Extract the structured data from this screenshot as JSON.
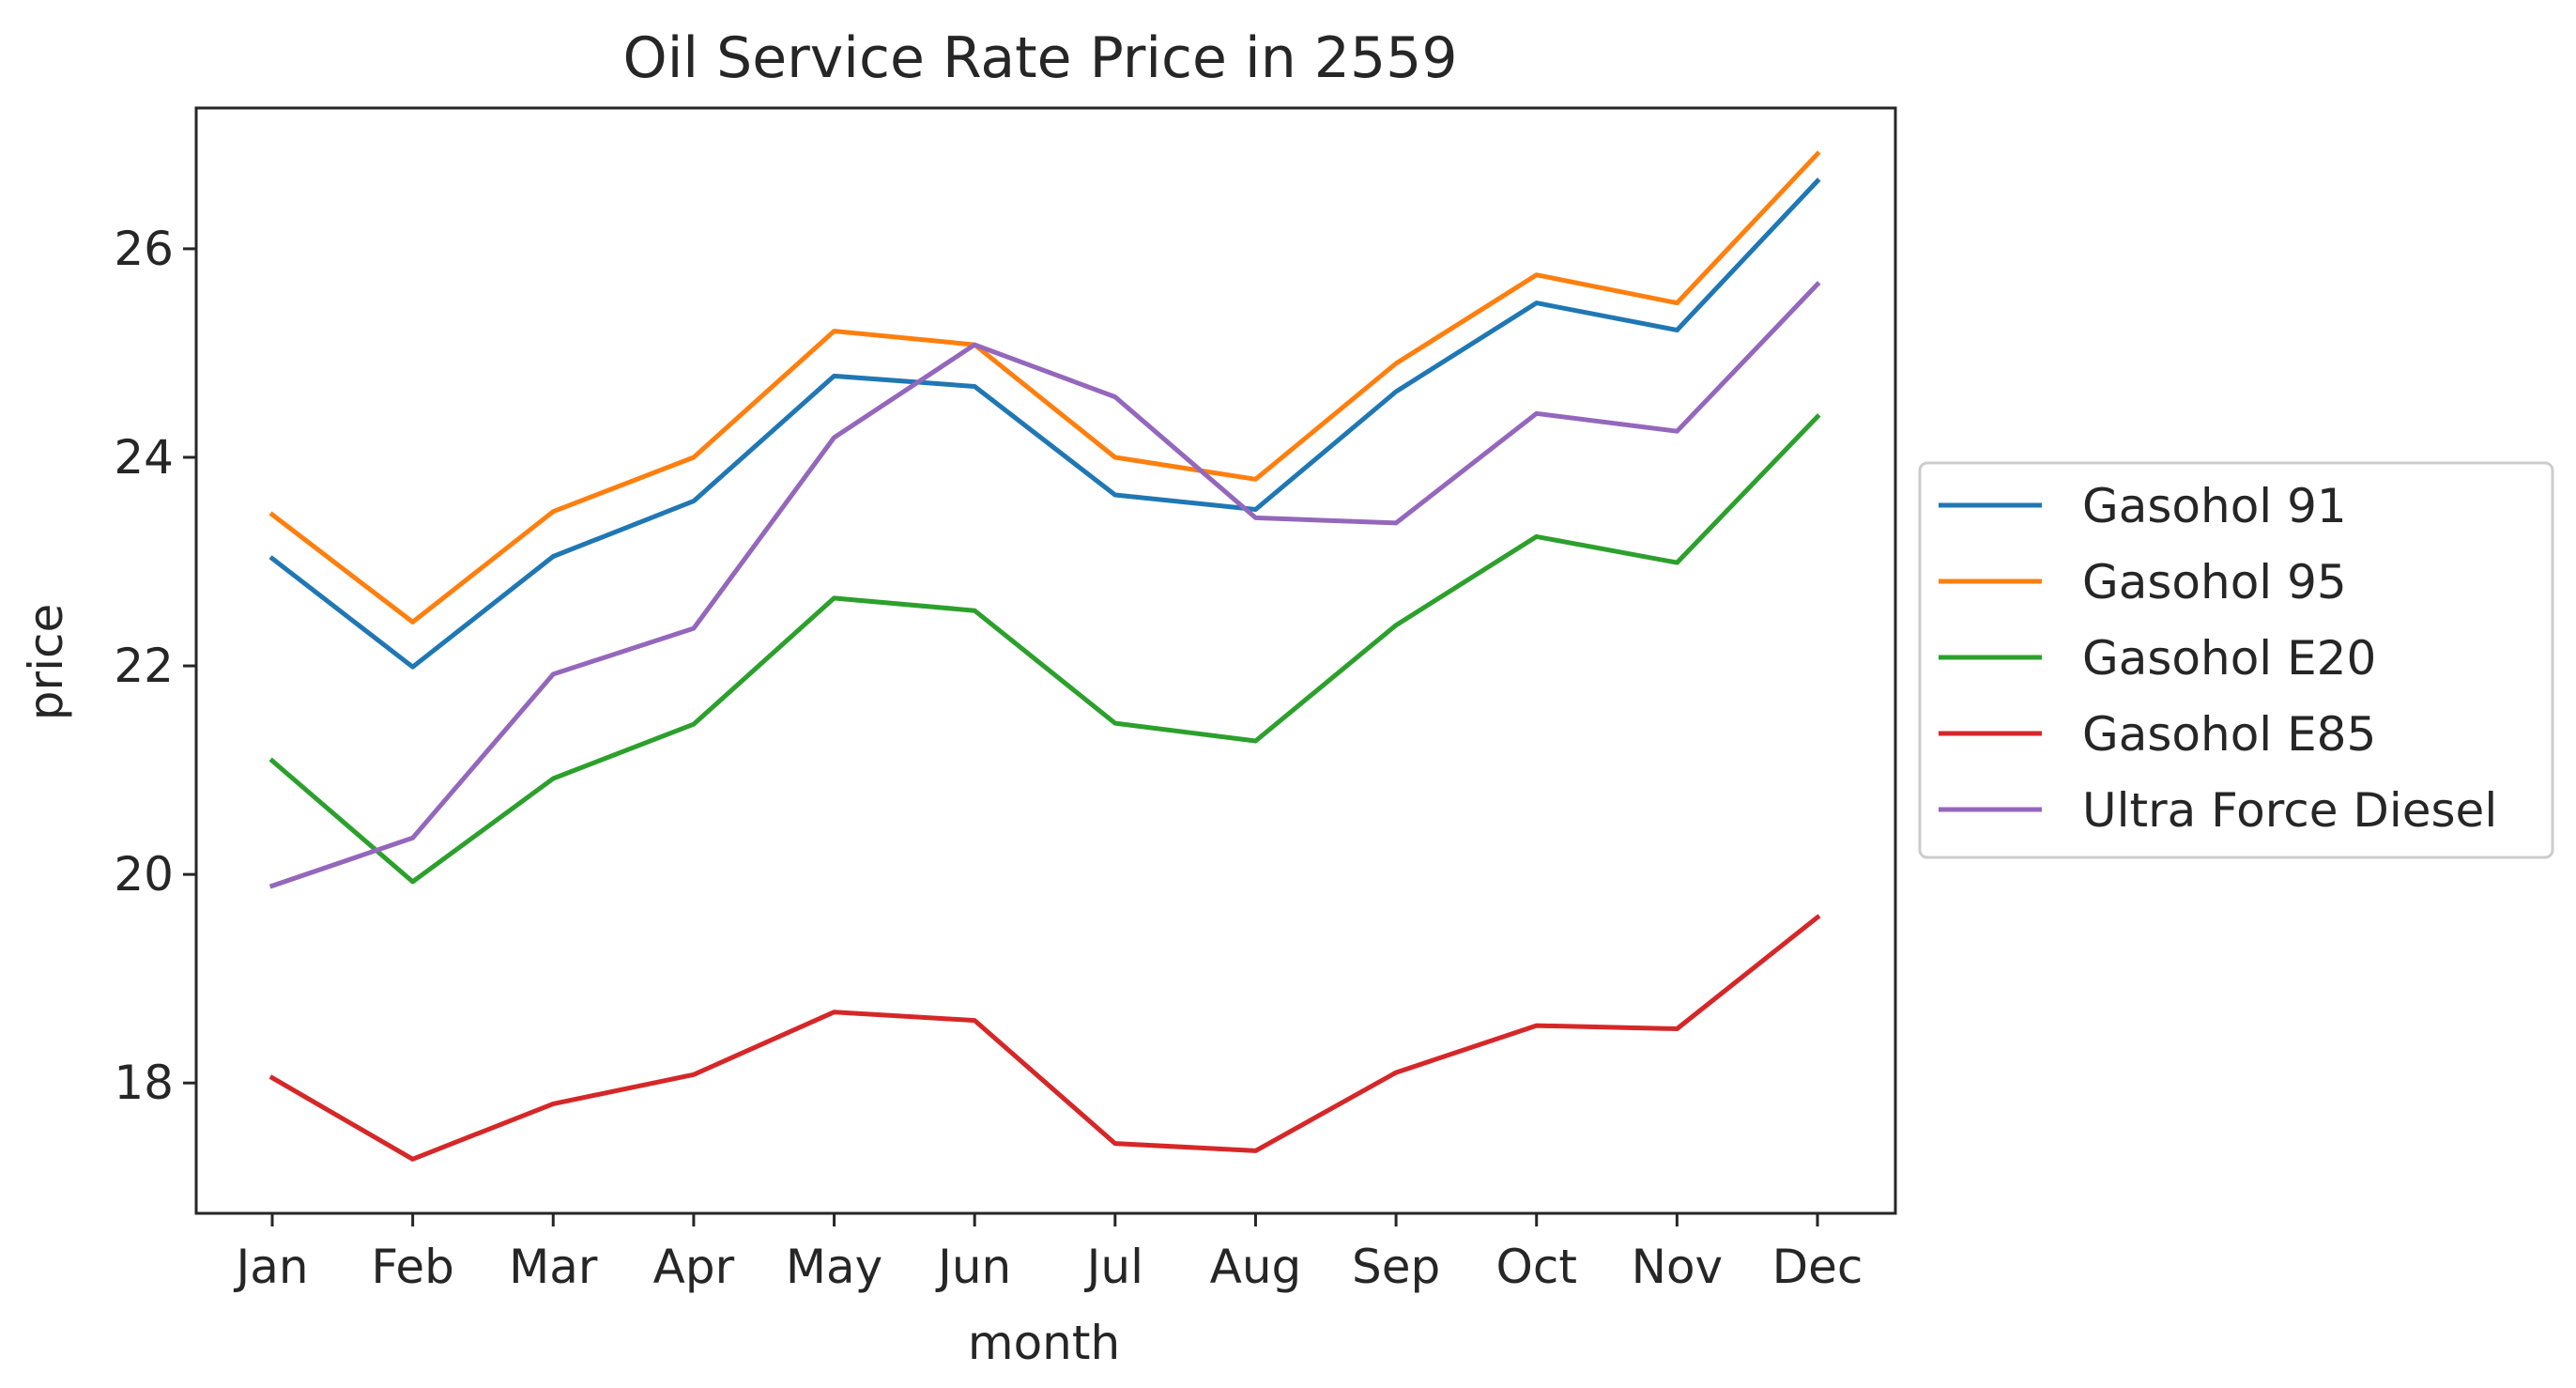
{
  "chart_data": {
    "type": "line",
    "title": "Oil Service Rate Price in 2559",
    "xlabel": "month",
    "ylabel": "price",
    "categories": [
      "Jan",
      "Feb",
      "Mar",
      "Apr",
      "May",
      "Jun",
      "Jul",
      "Aug",
      "Sep",
      "Oct",
      "Nov",
      "Dec"
    ],
    "ylim": [
      16.75,
      27.35
    ],
    "yticks": [
      18,
      20,
      22,
      24,
      26
    ],
    "grid": false,
    "legend_position": "center-right, outside plot",
    "series": [
      {
        "name": "Gasohol 91",
        "color": "#1f77b4",
        "values": [
          23.03,
          21.99,
          23.05,
          23.58,
          24.78,
          24.68,
          23.64,
          23.5,
          24.63,
          25.48,
          25.22,
          26.65
        ]
      },
      {
        "name": "Gasohol 95",
        "color": "#ff7f0e",
        "values": [
          23.45,
          22.42,
          23.48,
          24.0,
          25.21,
          25.08,
          24.0,
          23.79,
          24.9,
          25.75,
          25.48,
          26.91
        ]
      },
      {
        "name": "Gasohol E20",
        "color": "#2ca02c",
        "values": [
          21.09,
          19.93,
          20.92,
          21.44,
          22.65,
          22.53,
          21.45,
          21.28,
          22.39,
          23.24,
          22.99,
          24.39
        ]
      },
      {
        "name": "Gasohol E85",
        "color": "#d62728",
        "values": [
          18.05,
          17.27,
          17.8,
          18.08,
          18.68,
          18.6,
          17.42,
          17.35,
          18.1,
          18.55,
          18.52,
          19.59
        ]
      },
      {
        "name": "Ultra Force Diesel",
        "color": "#9467bd",
        "values": [
          19.89,
          20.35,
          21.92,
          22.36,
          24.19,
          25.08,
          24.58,
          23.42,
          23.37,
          24.42,
          24.25,
          25.66
        ]
      }
    ]
  }
}
